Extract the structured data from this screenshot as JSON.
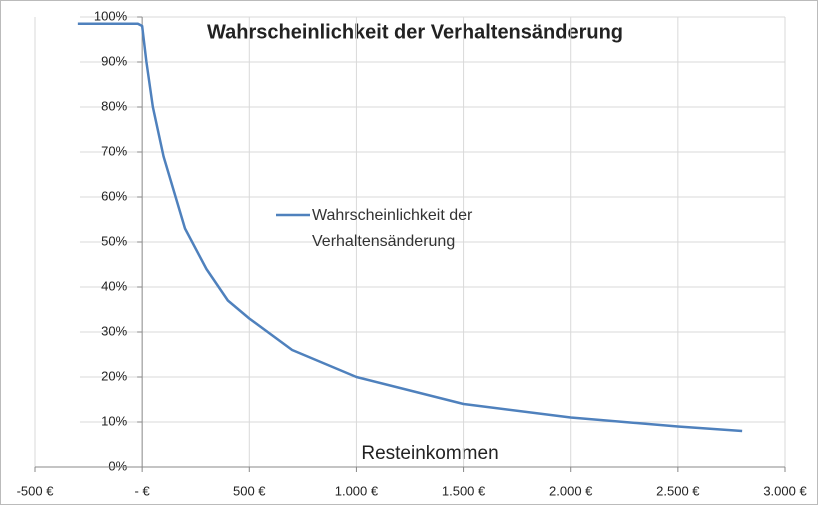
{
  "chart_data": {
    "type": "line",
    "title": "Wahrscheinlichkeit der Verhaltensänderung",
    "x_label": "Resteinkommen",
    "x": [
      -300,
      -100,
      -20,
      0,
      20,
      50,
      100,
      200,
      300,
      400,
      500,
      700,
      1000,
      1500,
      2000,
      2500,
      2800
    ],
    "series": [
      {
        "name": "Wahrscheinlichkeit der Verhaltensänderung",
        "color": "#4f81bd",
        "values": [
          98.5,
          98.5,
          98.5,
          98,
          90,
          80,
          69,
          53,
          44,
          37,
          33,
          26,
          20,
          14,
          11,
          9,
          8
        ]
      }
    ],
    "xlim": [
      -500,
      3000
    ],
    "xticks": [
      {
        "value": -500,
        "label": "-500 €"
      },
      {
        "value": 0,
        "label": "-  €"
      },
      {
        "value": 500,
        "label": "500 €"
      },
      {
        "value": 1000,
        "label": "1.000 €"
      },
      {
        "value": 1500,
        "label": "1.500 €"
      },
      {
        "value": 2000,
        "label": "2.000 €"
      },
      {
        "value": 2500,
        "label": "2.500 €"
      },
      {
        "value": 3000,
        "label": "3.000 €"
      }
    ],
    "ylim": [
      0,
      100
    ],
    "yticks": [
      {
        "value": 0,
        "label": "0%"
      },
      {
        "value": 10,
        "label": "10%"
      },
      {
        "value": 20,
        "label": "20%"
      },
      {
        "value": 30,
        "label": "30%"
      },
      {
        "value": 40,
        "label": "40%"
      },
      {
        "value": 50,
        "label": "50%"
      },
      {
        "value": 60,
        "label": "60%"
      },
      {
        "value": 70,
        "label": "70%"
      },
      {
        "value": 80,
        "label": "80%"
      },
      {
        "value": 90,
        "label": "90%"
      },
      {
        "value": 100,
        "label": "100%"
      }
    ],
    "grid": true
  }
}
